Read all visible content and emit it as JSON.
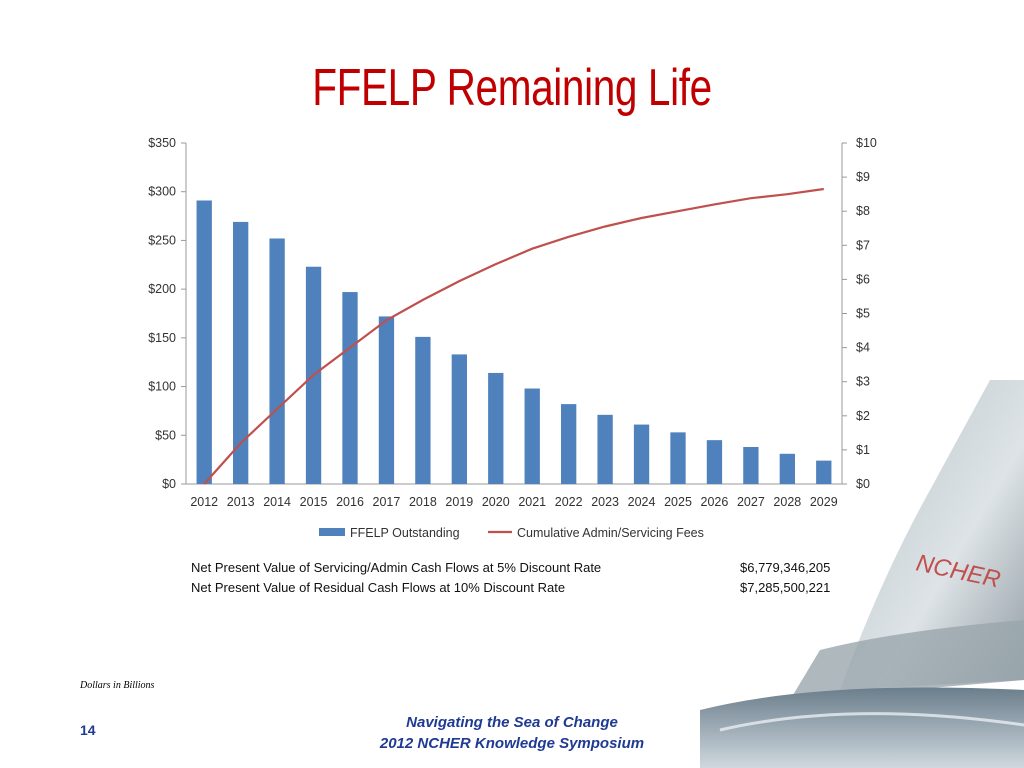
{
  "slide": {
    "title": "FFELP Remaining Life",
    "footnote": "Dollars in Billions",
    "page_number": "14",
    "footer_line1": "Navigating the Sea of Change",
    "footer_line2": "2012 NCHER Knowledge Symposium",
    "logo_text": "NCHER"
  },
  "npv": [
    {
      "label": "Net Present Value of Servicing/Admin Cash Flows at 5% Discount Rate",
      "value": "$6,779,346,205"
    },
    {
      "label": "Net Present Value of Residual Cash Flows at 10% Discount Rate",
      "value": "$7,285,500,221"
    }
  ],
  "colors": {
    "title": "#c00000",
    "bar": "#4f81bd",
    "line": "#c0504d",
    "footer": "#1f3a93"
  },
  "chart_data": {
    "type": "bar",
    "categories": [
      "2012",
      "2013",
      "2014",
      "2015",
      "2016",
      "2017",
      "2018",
      "2019",
      "2020",
      "2021",
      "2022",
      "2023",
      "2024",
      "2025",
      "2026",
      "2027",
      "2028",
      "2029"
    ],
    "series": [
      {
        "name": "FFELP Outstanding",
        "type": "bar",
        "axis": "left",
        "values": [
          291,
          269,
          252,
          223,
          197,
          172,
          151,
          133,
          114,
          98,
          82,
          71,
          61,
          53,
          45,
          38,
          31,
          24
        ]
      },
      {
        "name": "Cumulative Admin/Servicing Fees",
        "type": "line",
        "axis": "right",
        "values": [
          0,
          1.2,
          2.2,
          3.2,
          4.0,
          4.8,
          5.4,
          5.95,
          6.45,
          6.9,
          7.25,
          7.55,
          7.8,
          8.0,
          8.2,
          8.38,
          8.5,
          8.65
        ]
      }
    ],
    "y_left": {
      "min": 0,
      "max": 350,
      "step": 50,
      "ticks": [
        "$0",
        "$50",
        "$100",
        "$150",
        "$200",
        "$250",
        "$300",
        "$350"
      ]
    },
    "y_right": {
      "min": 0,
      "max": 10,
      "step": 1,
      "ticks": [
        "$0",
        "$1",
        "$2",
        "$3",
        "$4",
        "$5",
        "$6",
        "$7",
        "$8",
        "$9",
        "$10"
      ]
    },
    "grid": false,
    "legend": "bottom"
  }
}
